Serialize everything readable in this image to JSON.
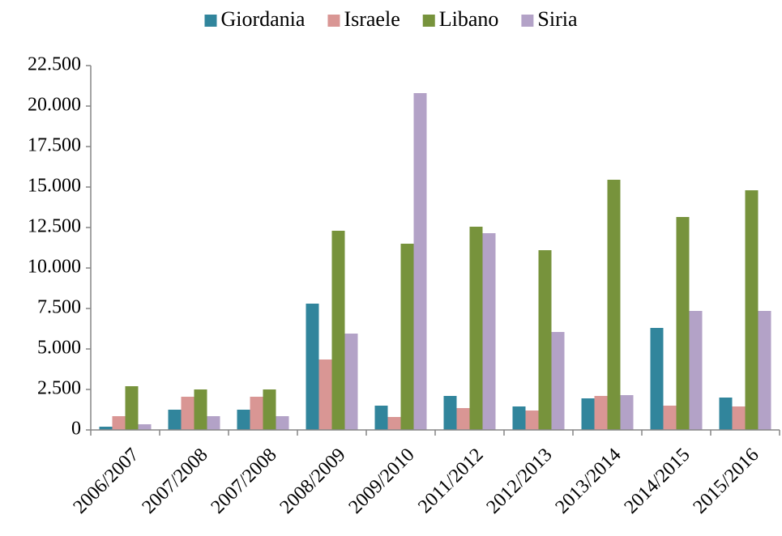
{
  "chart_data": {
    "type": "bar",
    "categories": [
      "2006/2007",
      "2007/2008",
      "2007/2008",
      "2008/2009",
      "2009/2010",
      "2011/2012",
      "2012/2013",
      "2013/2014",
      "2014/2015",
      "2015/2016"
    ],
    "series": [
      {
        "name": "Giordania",
        "color": "#31859c",
        "values": [
          200,
          1250,
          1250,
          7800,
          1500,
          2100,
          1450,
          1950,
          6300,
          2000
        ]
      },
      {
        "name": "Israele",
        "color": "#d99694",
        "values": [
          850,
          2050,
          2050,
          4350,
          800,
          1350,
          1200,
          2100,
          1500,
          1450
        ]
      },
      {
        "name": "Libano",
        "color": "#77933c",
        "values": [
          2700,
          2500,
          2500,
          12300,
          11500,
          12550,
          11100,
          15450,
          13150,
          14800
        ]
      },
      {
        "name": "Siria",
        "color": "#b3a2c7",
        "values": [
          350,
          850,
          850,
          5950,
          20800,
          12150,
          6050,
          2150,
          7350,
          7350
        ]
      }
    ],
    "ylim": [
      0,
      22500
    ],
    "yticks": [
      0,
      {
        "value": 2500,
        "label": "2.500"
      },
      {
        "value": 5000,
        "label": "5.000"
      },
      {
        "value": 7500,
        "label": "7.500"
      },
      {
        "value": 10000,
        "label": "10.000"
      },
      {
        "value": 12500,
        "label": "12.500"
      },
      {
        "value": 15000,
        "label": "15.000"
      },
      {
        "value": 17500,
        "label": "17.500"
      },
      {
        "value": 20000,
        "label": "20.000"
      },
      {
        "value": 22500,
        "label": "22.500"
      }
    ],
    "grid": false,
    "legend": "top"
  }
}
